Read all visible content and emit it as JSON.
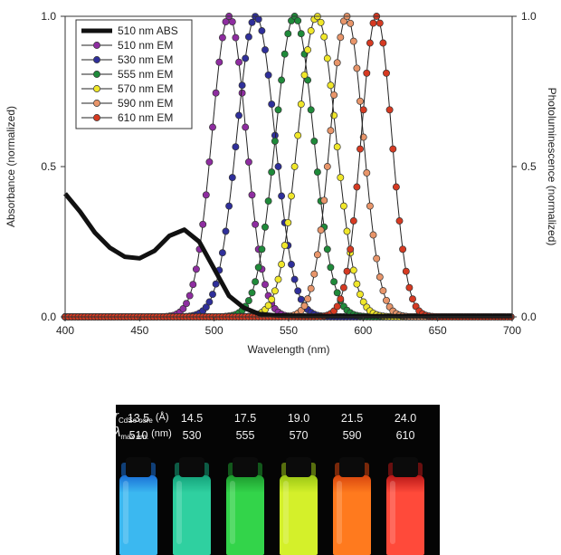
{
  "chart_data": {
    "type": "line",
    "xlabel": "Wavelength (nm)",
    "ylabel": "Absorbance (normalized)",
    "ylabel_right": "Photoluminescence (normalized)",
    "xlim": [
      400,
      700
    ],
    "ylim": [
      0,
      1.0
    ],
    "x_ticks": [
      400,
      450,
      500,
      550,
      600,
      650,
      700
    ],
    "x_tick_labels": [
      "400",
      "450",
      "500",
      "550",
      "600",
      "650",
      "700"
    ],
    "y_ticks": [
      0.0,
      0.5,
      1.0
    ],
    "y_tick_labels": [
      "0.0",
      "0.5",
      "1.0"
    ],
    "legend_position": "top-left",
    "grid": false,
    "series": [
      {
        "name": "510 nm ABS",
        "kind": "absorbance",
        "color": "#111111",
        "x": [
          400,
          410,
          420,
          430,
          440,
          450,
          460,
          470,
          480,
          490,
          500,
          510,
          520,
          530,
          540,
          550,
          560,
          570,
          580,
          600,
          650,
          700
        ],
        "y": [
          0.41,
          0.35,
          0.28,
          0.23,
          0.2,
          0.195,
          0.22,
          0.27,
          0.29,
          0.25,
          0.16,
          0.07,
          0.03,
          0.01,
          0.005,
          0.004,
          0.003,
          0.003,
          0.002,
          0.002,
          0.002,
          0.002
        ]
      },
      {
        "name": "510 nm EM",
        "kind": "emission",
        "peak": 510,
        "fwhm": 27,
        "color": "#8e2da0"
      },
      {
        "name": "530 nm EM",
        "kind": "emission",
        "peak": 528,
        "fwhm": 30,
        "color": "#2f2f9a"
      },
      {
        "name": "555 nm EM",
        "kind": "emission",
        "peak": 554,
        "fwhm": 30,
        "color": "#1f8a3a"
      },
      {
        "name": "570 nm EM",
        "kind": "emission",
        "peak": 569,
        "fwhm": 30,
        "color": "#f0e72a"
      },
      {
        "name": "590 nm EM",
        "kind": "emission",
        "peak": 589,
        "fwhm": 26,
        "color": "#e8956a"
      },
      {
        "name": "610 nm EM",
        "kind": "emission",
        "peak": 609,
        "fwhm": 24,
        "color": "#d63a22"
      }
    ]
  },
  "photo": {
    "row1_symbol": "r",
    "row1_sub": "CdSe core",
    "row1_unit": "(Å)",
    "row2_symbol": "λ",
    "row2_sub": "max em.",
    "row2_unit": "(nm)",
    "vials": [
      {
        "radius": "13.5",
        "wavelength": "510",
        "top_color": "#1a6fd6",
        "color": "#3bb8f0"
      },
      {
        "radius": "14.5",
        "wavelength": "530",
        "top_color": "#14a27a",
        "color": "#2fd0a0"
      },
      {
        "radius": "17.5",
        "wavelength": "555",
        "top_color": "#1d9a2e",
        "color": "#33d44a"
      },
      {
        "radius": "19.0",
        "wavelength": "570",
        "top_color": "#9ac515",
        "color": "#d4f02a"
      },
      {
        "radius": "21.5",
        "wavelength": "590",
        "top_color": "#d8460e",
        "color": "#ff7a1e"
      },
      {
        "radius": "24.0",
        "wavelength": "610",
        "top_color": "#b81818",
        "color": "#ff4a3a"
      }
    ]
  }
}
